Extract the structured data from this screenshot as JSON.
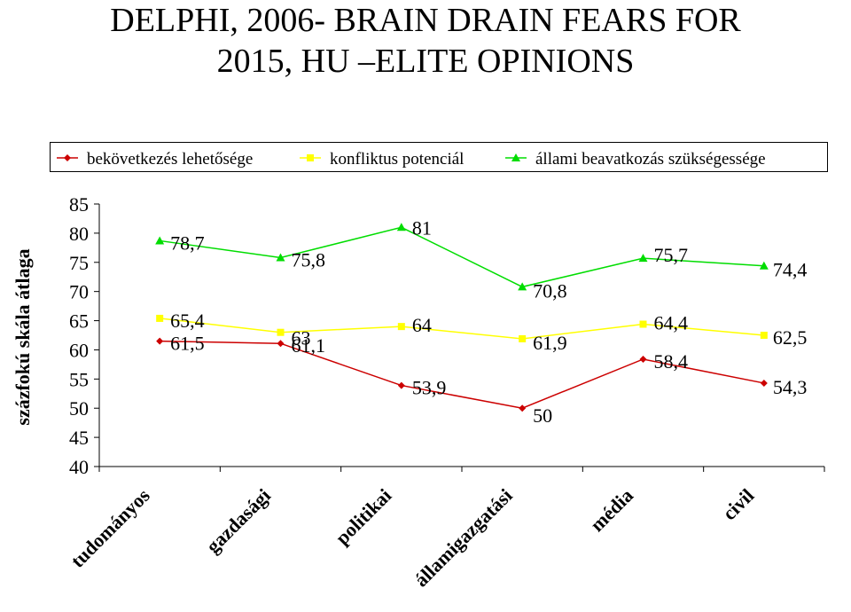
{
  "title": {
    "line1": "DELPHI, 2006- BRAIN DRAIN FEARS FOR",
    "line2": "2015, HU –ELITE OPINIONS"
  },
  "colors": {
    "series1": "#cc0000",
    "series2": "#ffff00",
    "series3": "#00dd00",
    "axis": "#000000"
  },
  "chart_data": {
    "type": "line",
    "title": "DELPHI, 2006- BRAIN DRAIN FEARS FOR 2015, HU –ELITE OPINIONS",
    "xlabel": "",
    "ylabel": "százfokú skála átlaga",
    "ylim": [
      40,
      85
    ],
    "yticks": [
      "85",
      "80",
      "75",
      "70",
      "65",
      "60",
      "55",
      "50",
      "45",
      "40"
    ],
    "categories": [
      "tudományos",
      "gazdasági",
      "politikai",
      "államigazgatási",
      "média",
      "civil"
    ],
    "grid": false,
    "legend_position": "top",
    "series": [
      {
        "name": "bekövetkezés lehetősége",
        "marker": "diamond",
        "values": [
          61.5,
          61.1,
          53.9,
          50,
          58.4,
          54.3
        ],
        "labels": [
          "61,5",
          "61,1",
          "53,9",
          "50",
          "58,4",
          "54,3"
        ]
      },
      {
        "name": "konfliktus potenciál",
        "marker": "square",
        "values": [
          65.4,
          63,
          64,
          61.9,
          64.4,
          62.5
        ],
        "labels": [
          "65,4",
          "63",
          "64",
          "61,9",
          "64,4",
          "62,5"
        ]
      },
      {
        "name": "állami beavatkozás szükségessége",
        "marker": "triangle",
        "values": [
          78.7,
          75.8,
          81,
          70.8,
          75.7,
          74.4
        ],
        "labels": [
          "78,7",
          "75,8",
          "81",
          "70,8",
          "75,7",
          "74,4"
        ]
      }
    ]
  }
}
